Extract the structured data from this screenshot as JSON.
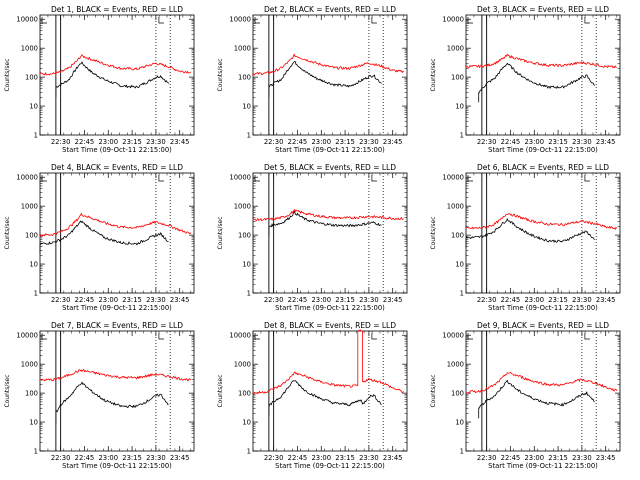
{
  "chart_data": {
    "type": "line",
    "x_unit": "time of day (HH:MM) on 09-Oct-11",
    "x_axis_ticks": [
      "22:30",
      "22:45",
      "23:00",
      "23:15",
      "23:30",
      "23:45"
    ],
    "x_range": [
      "22:17",
      "23:54"
    ],
    "y_axis_ticks": [
      "1",
      "10",
      "100",
      "1000",
      "10000"
    ],
    "y_range": [
      1,
      14000
    ],
    "y_scale": "log",
    "xlabel": "Start Time (09-Oct-11 22:15:00)",
    "ylabel": "Counts/sec",
    "legend": "BLACK = Events, RED = LLD",
    "colors": {
      "events": "#000000",
      "lld": "#ff0000"
    },
    "grid": false,
    "panels": [
      {
        "title": "Det 1, BLACK = Events, RED = LLD",
        "solid_markers": [
          "22:27",
          "22:30"
        ],
        "dotted_markers": [
          "23:30",
          "23:39"
        ],
        "series": [
          {
            "name": "Events",
            "x": [
              "22:27",
              "22:30",
              "22:35",
              "22:40",
              "22:43",
              "22:50",
              "22:58",
              "23:08",
              "23:18",
              "23:25",
              "23:30",
              "23:33",
              "23:38"
            ],
            "y": [
              45,
              55,
              80,
              200,
              320,
              140,
              80,
              50,
              45,
              70,
              100,
              110,
              60
            ]
          },
          {
            "name": "LLD",
            "x": [
              "22:17",
              "22:25",
              "22:30",
              "22:35",
              "22:40",
              "22:43",
              "22:50",
              "22:58",
              "23:08",
              "23:18",
              "23:25",
              "23:30",
              "23:38",
              "23:45",
              "23:52"
            ],
            "y": [
              130,
              130,
              150,
              200,
              350,
              550,
              400,
              280,
              200,
              190,
              250,
              300,
              230,
              160,
              150
            ]
          }
        ]
      },
      {
        "title": "Det 2, BLACK = Events, RED = LLD",
        "solid_markers": [
          "22:27",
          "22:30"
        ],
        "dotted_markers": [
          "23:30",
          "23:39"
        ],
        "series": [
          {
            "name": "Events",
            "x": [
              "22:27",
              "22:30",
              "22:35",
              "22:40",
              "22:43",
              "22:50",
              "22:58",
              "23:08",
              "23:18",
              "23:25",
              "23:30",
              "23:33",
              "23:38"
            ],
            "y": [
              45,
              60,
              85,
              220,
              340,
              150,
              85,
              55,
              48,
              75,
              105,
              115,
              60
            ]
          },
          {
            "name": "LLD",
            "x": [
              "22:17",
              "22:25",
              "22:30",
              "22:35",
              "22:40",
              "22:43",
              "22:50",
              "22:58",
              "23:08",
              "23:18",
              "23:25",
              "23:30",
              "23:38",
              "23:45",
              "23:52"
            ],
            "y": [
              130,
              135,
              155,
              210,
              360,
              560,
              410,
              290,
              210,
              200,
              260,
              310,
              240,
              170,
              150
            ]
          }
        ]
      },
      {
        "title": "Det 3, BLACK = Events, RED = LLD",
        "solid_markers": [
          "22:27",
          "22:30"
        ],
        "dotted_markers": [
          "23:30",
          "23:39"
        ],
        "series": [
          {
            "name": "Events",
            "x": [
              "22:25",
              "22:30",
              "22:35",
              "22:40",
              "22:43",
              "22:50",
              "22:58",
              "23:08",
              "23:18",
              "23:25",
              "23:30",
              "23:33",
              "23:38"
            ],
            "y": [
              30,
              60,
              90,
              200,
              300,
              130,
              70,
              45,
              45,
              70,
              100,
              110,
              50
            ]
          },
          {
            "name": "LLD",
            "x": [
              "22:17",
              "22:25",
              "22:30",
              "22:35",
              "22:40",
              "22:43",
              "22:50",
              "22:58",
              "23:08",
              "23:18",
              "23:25",
              "23:30",
              "23:38",
              "23:45",
              "23:52"
            ],
            "y": [
              230,
              235,
              250,
              300,
              420,
              560,
              420,
              320,
              260,
              250,
              290,
              320,
              280,
              230,
              220
            ]
          }
        ]
      },
      {
        "title": "Det 4, BLACK = Events, RED = LLD",
        "solid_markers": [
          "22:27",
          "22:30"
        ],
        "dotted_markers": [
          "23:30",
          "23:39"
        ],
        "series": [
          {
            "name": "Events",
            "x": [
              "22:17",
              "22:25",
              "22:30",
              "22:35",
              "22:40",
              "22:43",
              "22:50",
              "22:58",
              "23:08",
              "23:18",
              "23:25",
              "23:30",
              "23:33",
              "23:38"
            ],
            "y": [
              50,
              55,
              70,
              100,
              200,
              300,
              150,
              80,
              55,
              50,
              75,
              100,
              110,
              60
            ]
          },
          {
            "name": "LLD",
            "x": [
              "22:17",
              "22:25",
              "22:30",
              "22:35",
              "22:40",
              "22:43",
              "22:50",
              "22:58",
              "23:08",
              "23:18",
              "23:25",
              "23:30",
              "23:38",
              "23:45",
              "23:52"
            ],
            "y": [
              100,
              105,
              130,
              180,
              320,
              520,
              380,
              260,
              190,
              180,
              240,
              280,
              220,
              150,
              110
            ]
          }
        ]
      },
      {
        "title": "Det 5, BLACK = Events, RED = LLD",
        "solid_markers": [
          "22:27",
          "22:30"
        ],
        "dotted_markers": [
          "23:30",
          "23:39"
        ],
        "series": [
          {
            "name": "Events",
            "x": [
              "22:27",
              "22:30",
              "22:35",
              "22:40",
              "22:43",
              "22:50",
              "22:58",
              "23:08",
              "23:18",
              "23:25",
              "23:30",
              "23:33",
              "23:38"
            ],
            "y": [
              200,
              230,
              260,
              400,
              600,
              350,
              260,
              220,
              210,
              230,
              260,
              270,
              220
            ]
          },
          {
            "name": "LLD",
            "x": [
              "22:17",
              "22:25",
              "22:30",
              "22:35",
              "22:40",
              "22:43",
              "22:50",
              "22:58",
              "23:08",
              "23:18",
              "23:25",
              "23:30",
              "23:38",
              "23:45",
              "23:52"
            ],
            "y": [
              340,
              345,
              360,
              400,
              520,
              700,
              560,
              460,
              400,
              390,
              420,
              440,
              410,
              380,
              370
            ]
          }
        ]
      },
      {
        "title": "Det 6, BLACK = Events, RED = LLD",
        "solid_markers": [
          "22:27",
          "22:30"
        ],
        "dotted_markers": [
          "23:30",
          "23:39"
        ],
        "series": [
          {
            "name": "Events",
            "x": [
              "22:17",
              "22:25",
              "22:30",
              "22:35",
              "22:40",
              "22:43",
              "22:50",
              "22:58",
              "23:08",
              "23:18",
              "23:25",
              "23:30",
              "23:33",
              "23:38"
            ],
            "y": [
              80,
              85,
              100,
              140,
              250,
              350,
              180,
              100,
              65,
              60,
              90,
              120,
              130,
              70
            ]
          },
          {
            "name": "LLD",
            "x": [
              "22:17",
              "22:25",
              "22:30",
              "22:35",
              "22:40",
              "22:43",
              "22:50",
              "22:58",
              "23:08",
              "23:18",
              "23:25",
              "23:30",
              "23:38",
              "23:45",
              "23:52"
            ],
            "y": [
              170,
              175,
              190,
              240,
              380,
              580,
              430,
              310,
              240,
              230,
              270,
              300,
              250,
              190,
              170
            ]
          }
        ]
      },
      {
        "title": "Det 7, BLACK = Events, RED = LLD",
        "solid_markers": [
          "22:27",
          "22:30"
        ],
        "dotted_markers": [
          "23:30",
          "23:39"
        ],
        "series": [
          {
            "name": "Events",
            "x": [
              "22:27",
              "22:30",
              "22:35",
              "22:40",
              "22:43",
              "22:50",
              "22:58",
              "23:08",
              "23:18",
              "23:25",
              "23:30",
              "23:33",
              "23:38"
            ],
            "y": [
              20,
              40,
              70,
              150,
              230,
              110,
              55,
              35,
              35,
              55,
              80,
              90,
              40
            ]
          },
          {
            "name": "LLD",
            "x": [
              "22:17",
              "22:25",
              "22:30",
              "22:35",
              "22:40",
              "22:43",
              "22:50",
              "22:58",
              "23:08",
              "23:18",
              "23:25",
              "23:30",
              "23:38",
              "23:45",
              "23:52"
            ],
            "y": [
              280,
              290,
              330,
              420,
              550,
              620,
              520,
              420,
              350,
              340,
              400,
              450,
              380,
              320,
              280
            ]
          }
        ]
      },
      {
        "title": "Det 8, BLACK = Events, RED = LLD",
        "solid_markers": [
          "22:27",
          "22:30"
        ],
        "dotted_markers": [
          "23:30",
          "23:39"
        ],
        "series": [
          {
            "name": "Events",
            "x": [
              "22:27",
              "22:30",
              "22:35",
              "22:40",
              "22:43",
              "22:50",
              "22:58",
              "23:08",
              "23:18",
              "23:25",
              "23:26",
              "23:30",
              "23:33",
              "23:38"
            ],
            "y": [
              35,
              50,
              80,
              180,
              280,
              120,
              70,
              45,
              40,
              60,
              40,
              75,
              85,
              40
            ]
          },
          {
            "name": "LLD",
            "x": [
              "22:17",
              "22:25",
              "22:30",
              "22:35",
              "22:40",
              "22:43",
              "22:50",
              "22:58",
              "23:08",
              "23:18",
              "23:23",
              "23:23",
              "23:26",
              "23:26",
              "23:30",
              "23:38",
              "23:45",
              "23:52"
            ],
            "y": [
              100,
              110,
              140,
              190,
              330,
              500,
              380,
              260,
              190,
              170,
              180,
              14000,
              14000,
              250,
              300,
              240,
              150,
              110
            ]
          }
        ]
      },
      {
        "title": "Det 9, BLACK = Events, RED = LLD",
        "solid_markers": [
          "22:27",
          "22:30"
        ],
        "dotted_markers": [
          "23:30",
          "23:39"
        ],
        "series": [
          {
            "name": "Events",
            "x": [
              "22:25",
              "22:30",
              "22:35",
              "22:40",
              "22:43",
              "22:50",
              "22:58",
              "23:08",
              "23:18",
              "23:25",
              "23:30",
              "23:33",
              "23:38"
            ],
            "y": [
              30,
              55,
              80,
              170,
              260,
              120,
              70,
              45,
              40,
              60,
              90,
              100,
              50
            ]
          },
          {
            "name": "LLD",
            "x": [
              "22:17",
              "22:25",
              "22:30",
              "22:35",
              "22:40",
              "22:43",
              "22:50",
              "22:58",
              "23:08",
              "23:18",
              "23:25",
              "23:30",
              "23:38",
              "23:45",
              "23:52"
            ],
            "y": [
              110,
              115,
              140,
              190,
              330,
              510,
              390,
              270,
              200,
              190,
              250,
              290,
              230,
              160,
              120
            ]
          }
        ]
      }
    ]
  }
}
